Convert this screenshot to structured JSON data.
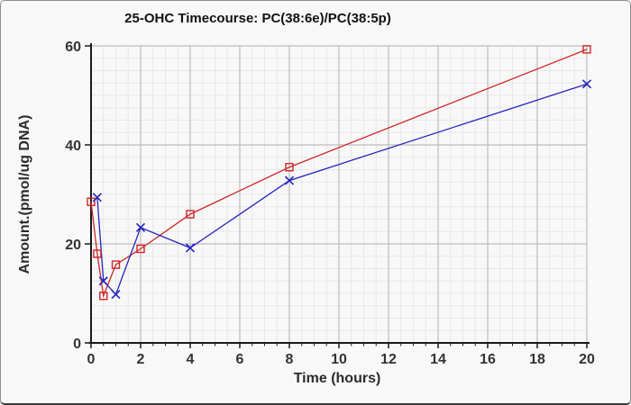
{
  "chart_data": {
    "type": "line",
    "title": "25-OHC Timecourse: PC(38:6e)/PC(38:5p)",
    "xlabel": "Time (hours)",
    "ylabel": "Amount.(pmol/ug DNA)",
    "xlim": [
      0,
      20
    ],
    "ylim": [
      0,
      60
    ],
    "x_ticks": [
      0,
      2,
      4,
      6,
      8,
      10,
      12,
      14,
      16,
      18,
      20
    ],
    "y_ticks": [
      0,
      20,
      40,
      60
    ],
    "x_minor_step": 0.5,
    "y_minor_step": 2.5,
    "grid": {
      "major_color": "#bdbdbd",
      "minor_color": "#e7e7e7",
      "axis_color": "#1a1a1a"
    },
    "series": [
      {
        "name": "red-squares-series",
        "color": "#cc2626",
        "marker": "open-square",
        "x": [
          0,
          0.25,
          0.5,
          1,
          2,
          4,
          8,
          20
        ],
        "y": [
          28.5,
          18.0,
          9.5,
          15.8,
          19.0,
          26.0,
          35.5,
          59.3
        ]
      },
      {
        "name": "blue-x-series",
        "color": "#2424bb",
        "marker": "x-cross",
        "x": [
          0.25,
          0.5,
          1,
          2,
          4,
          8,
          20
        ],
        "y": [
          29.4,
          12.5,
          9.8,
          23.3,
          19.2,
          32.8,
          52.3
        ]
      }
    ]
  }
}
